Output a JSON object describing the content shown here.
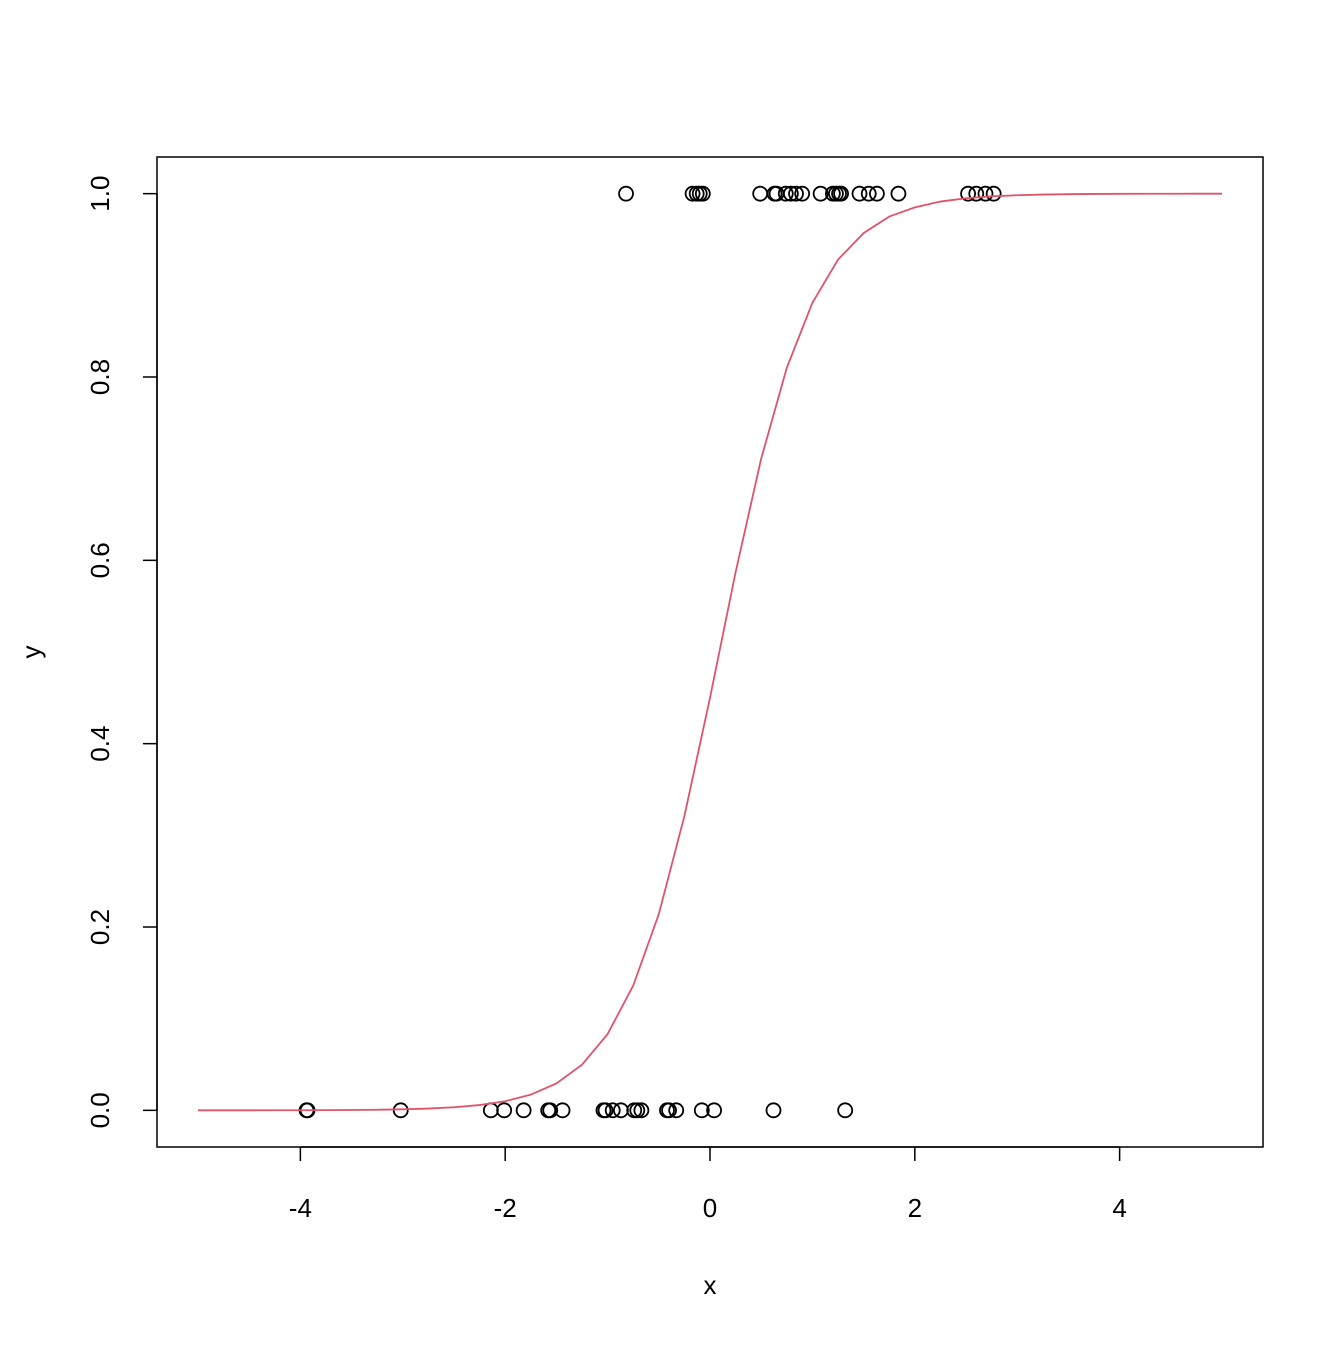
{
  "chart_data": {
    "type": "scatter",
    "xlabel": "x",
    "ylabel": "y",
    "xlim": [
      -5.4,
      5.4
    ],
    "ylim": [
      -0.04,
      1.04
    ],
    "xticks": [
      -4,
      -2,
      0,
      2,
      4
    ],
    "yticks": [
      {
        "value": 0,
        "label": "0.0"
      },
      {
        "value": 0.2,
        "label": "0.2"
      },
      {
        "value": 0.4,
        "label": "0.4"
      },
      {
        "value": 0.6,
        "label": "0.6"
      },
      {
        "value": 0.8,
        "label": "0.8"
      },
      {
        "value": 1,
        "label": "1.0"
      }
    ],
    "grid": false,
    "series": [
      {
        "type": "scatter",
        "color": "#000000",
        "x": [
          -3.94,
          -3.93,
          -3.02,
          -2.14,
          -2.01,
          -1.82,
          -1.58,
          -1.56,
          -1.44,
          -1.04,
          -1.02,
          -0.95,
          -0.87,
          -0.74,
          -0.71,
          -0.67,
          -0.42,
          -0.4,
          -0.33,
          -0.08,
          0.04,
          0.62,
          1.32,
          -0.82,
          -0.17,
          -0.13,
          -0.1,
          -0.07,
          0.49,
          0.63,
          0.65,
          0.74,
          0.79,
          0.84,
          0.9,
          1.08,
          1.2,
          1.23,
          1.26,
          1.28,
          1.46,
          1.55,
          1.63,
          1.84,
          2.52,
          2.6,
          2.69,
          2.77
        ],
        "values": [
          0,
          0,
          0,
          0,
          0,
          0,
          0,
          0,
          0,
          0,
          0,
          0,
          0,
          0,
          0,
          0,
          0,
          0,
          0,
          0,
          0,
          0,
          0,
          1,
          1,
          1,
          1,
          1,
          1,
          1,
          1,
          1,
          1,
          1,
          1,
          1,
          1,
          1,
          1,
          1,
          1,
          1,
          1,
          1,
          1,
          1,
          1,
          1
        ]
      },
      {
        "type": "line",
        "color": "#df536b",
        "x": [
          -5,
          -4.75,
          -4.5,
          -4.25,
          -4,
          -3.75,
          -3.5,
          -3.25,
          -3,
          -2.75,
          -2.5,
          -2.25,
          -2,
          -1.75,
          -1.5,
          -1.25,
          -1,
          -0.75,
          -0.5,
          -0.25,
          0,
          0.25,
          0.5,
          0.75,
          1,
          1.25,
          1.5,
          1.75,
          2,
          2.25,
          2.5,
          2.75,
          3,
          3.25,
          3.5,
          3.75,
          4,
          4.25,
          4.5,
          4.75,
          5
        ],
        "values": [
          1e-05,
          2e-05,
          4e-05,
          7e-05,
          0.00012,
          0.00021,
          0.00037,
          0.00064,
          0.00111,
          0.00193,
          0.00333,
          0.00576,
          0.00995,
          0.0171,
          0.0293,
          0.0498,
          0.0832,
          0.136,
          0.214,
          0.321,
          0.45,
          0.587,
          0.711,
          0.81,
          0.881,
          0.928,
          0.957,
          0.975,
          0.985,
          0.9914,
          0.995,
          0.9971,
          0.9983,
          0.999,
          0.99945,
          0.99968,
          0.99982,
          0.99989,
          0.99994,
          0.99996,
          0.99998
        ]
      }
    ]
  }
}
